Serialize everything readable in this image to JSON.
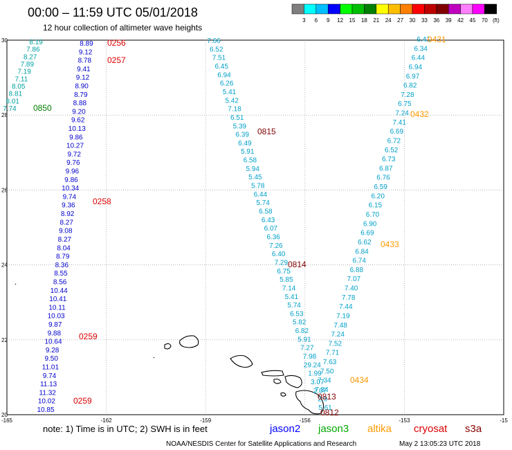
{
  "header": {
    "title": "00:00 – 11:59 UTC 05/01/2018",
    "subtitle": "12 hour collection of altimeter wave heights"
  },
  "colorbar": {
    "unit": "(ft)",
    "labels": [
      "3",
      "6",
      "9",
      "12",
      "15",
      "18",
      "21",
      "24",
      "27",
      "30",
      "33",
      "36",
      "39",
      "42",
      "45",
      "70"
    ],
    "colors": [
      "#7f7f7f",
      "#00ffff",
      "#00bfff",
      "#0000ff",
      "#00ff00",
      "#00bf00",
      "#007f00",
      "#ffff00",
      "#ffbf00",
      "#ff7f00",
      "#ff0000",
      "#bf0000",
      "#7f0000",
      "#bf00bf",
      "#ff7fff",
      "#ff00ff",
      "#000000"
    ]
  },
  "axes": {
    "lat_ticks": [
      "30",
      "28",
      "26",
      "24",
      "22",
      "20"
    ],
    "lon_ticks": [
      "-165",
      "-162",
      "-159",
      "-156",
      "-153",
      "-15"
    ]
  },
  "tracks": [
    {
      "satellite": "jason2",
      "color": "#00a0a0",
      "values": [
        "8.19",
        "7.86",
        "8.27",
        "7.89",
        "7.19",
        "7.11",
        "8.05",
        "8.81",
        "8.01",
        "7.74"
      ],
      "labels": [
        {
          "text": "0850",
          "color": "#008000"
        }
      ]
    },
    {
      "satellite": "jason2",
      "color": "#0000cc",
      "values": [
        "8.89",
        "9.12",
        "8.78",
        "9.41",
        "9.12",
        "8.90",
        "8.79",
        "8.88",
        "9.20",
        "9.62",
        "10.13",
        "9.86",
        "10.27",
        "9.72",
        "9.76",
        "9.96",
        "9.86",
        "10.34",
        "9.74",
        "9.36",
        "8.92",
        "8.27",
        "9.08",
        "8.27",
        "8.04",
        "8.79",
        "8.36",
        "8.55",
        "8.56",
        "10.44",
        "10.41",
        "10.11",
        "10.03",
        "9.87",
        "9.88",
        "10.64",
        "9.28",
        "9.50",
        "11.01",
        "9.74",
        "11.13",
        "11.32",
        "10.02",
        "10.85"
      ],
      "labels": [
        {
          "text": "0256",
          "color": "#dd0000"
        },
        {
          "text": "0257",
          "color": "#dd0000"
        },
        {
          "text": "0258",
          "color": "#dd0000"
        },
        {
          "text": "0259",
          "color": "#dd0000"
        },
        {
          "text": "0259",
          "color": "#dd0000"
        }
      ]
    },
    {
      "satellite": "cryosat",
      "color": "#00a0c8",
      "values": [
        "7.66",
        "6.52",
        "7.51",
        "6.45",
        "6.94",
        "6.26",
        "5.41",
        "5.42",
        "7.18",
        "6.51",
        "5.39",
        "6.39",
        "6.49",
        "5.91",
        "6.58",
        "5.94",
        "5.45",
        "5.78",
        "6.44",
        "5.74",
        "6.58",
        "6.43",
        "6.07",
        "6.36",
        "7.26",
        "6.40",
        "7.29",
        "6.75",
        "5.85",
        "7.14",
        "5.41",
        "5.74",
        "6.53",
        "5.82",
        "6.82",
        "5.91",
        "7.27",
        "7.98",
        "29.24",
        "1.99",
        "3.07",
        "2.07",
        "2.9",
        "5.61"
      ],
      "labels": [
        {
          "text": "0815",
          "color": "#800000"
        },
        {
          "text": "0814",
          "color": "#800000"
        },
        {
          "text": "0813",
          "color": "#800000"
        },
        {
          "text": "0812",
          "color": "#800000"
        }
      ]
    },
    {
      "satellite": "altika",
      "color": "#00a0c8",
      "values": [
        "6.41",
        "6.34",
        "6.44",
        "6.94",
        "6.97",
        "6.82",
        "7.28",
        "6.75",
        "7.24",
        "7.41",
        "6.69",
        "6.72",
        "6.52",
        "6.73",
        "6.87",
        "6.76",
        "6.59",
        "6.20",
        "6.15",
        "6.70",
        "6.90",
        "6.69",
        "6.62",
        "6.84",
        "6.74",
        "6.88",
        "7.07",
        "7.40",
        "7.78",
        "7.44",
        "7.19",
        "7.48",
        "7.24",
        "7.52",
        "7.71",
        "7.63",
        "7.50",
        "7.34",
        "7.84"
      ],
      "labels": [
        {
          "text": "0431",
          "color": "#ff9900"
        },
        {
          "text": "0432",
          "color": "#ff9900"
        },
        {
          "text": "0433",
          "color": "#ff9900"
        },
        {
          "text": "0434",
          "color": "#ff9900"
        }
      ]
    }
  ],
  "note": {
    "text": "note:  1) Time is in UTC; 2) SWH is in feet",
    "satellites": [
      {
        "name": "jason2",
        "color": "#0000ff"
      },
      {
        "name": "jason3",
        "color": "#00aa00"
      },
      {
        "name": "altika",
        "color": "#ff9900"
      },
      {
        "name": "cryosat",
        "color": "#dd0000"
      },
      {
        "name": "s3a",
        "color": "#880000"
      }
    ]
  },
  "footer": {
    "credit": "NOAA/NESDIS Center for Satellite Applications and Research",
    "timestamp": "May  2 13:05:23 UTC 2018"
  }
}
